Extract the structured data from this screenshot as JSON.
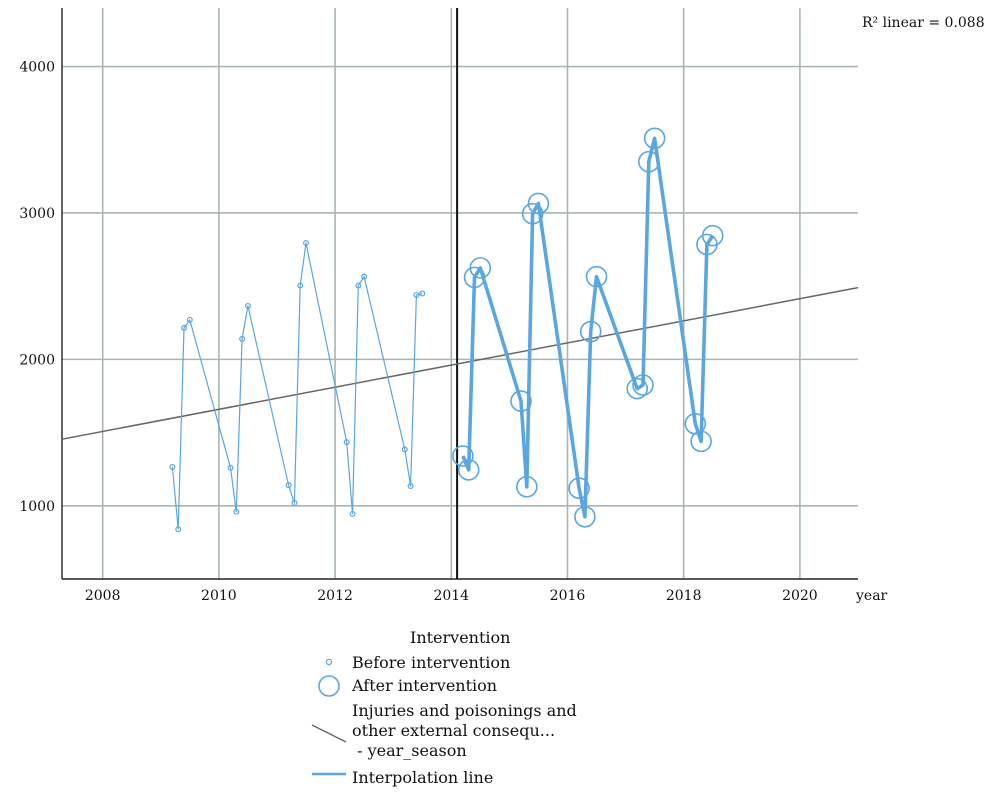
{
  "chart_data": {
    "type": "scatter",
    "xlabel": "year",
    "ylabel": "",
    "xlim": [
      2007.3,
      2021.0
    ],
    "ylim": [
      500,
      4400
    ],
    "x_ticks": [
      2008,
      2010,
      2012,
      2014,
      2016,
      2018,
      2020
    ],
    "y_ticks": [
      1000,
      2000,
      3000,
      4000
    ],
    "grid": true,
    "intervention_x": 2014.1,
    "fit_annotation": "R² linear = 0.088",
    "fit_line": {
      "x": [
        2007.3,
        2021.0
      ],
      "y": [
        1455,
        2490
      ]
    },
    "legend_title": "Intervention",
    "series": [
      {
        "name": "Before intervention",
        "marker": "small-circle",
        "color": "#5aa6e0",
        "x": [
          2009.2,
          2009.3,
          2009.4,
          2009.5,
          2010.2,
          2010.3,
          2010.4,
          2010.5,
          2011.2,
          2011.3,
          2011.4,
          2011.5,
          2012.2,
          2012.3,
          2012.4,
          2012.5,
          2013.2,
          2013.3,
          2013.4,
          2013.5
        ],
        "y": [
          1265,
          840,
          2215,
          2270,
          1260,
          960,
          2140,
          2365,
          1140,
          1020,
          2505,
          2795,
          1435,
          945,
          2505,
          2565,
          1385,
          1135,
          2440,
          2450
        ]
      },
      {
        "name": "After intervention",
        "marker": "large-circle",
        "color": "#5aa6e0",
        "x": [
          2014.2,
          2014.3,
          2014.4,
          2014.5,
          2015.2,
          2015.3,
          2015.4,
          2015.5,
          2016.2,
          2016.3,
          2016.4,
          2016.5,
          2017.2,
          2017.3,
          2017.4,
          2017.5,
          2018.2,
          2018.3,
          2018.4,
          2018.5
        ],
        "y": [
          1340,
          1245,
          2560,
          2625,
          1715,
          1130,
          2995,
          3065,
          1120,
          925,
          2190,
          2565,
          1800,
          1825,
          3350,
          3510,
          1560,
          1440,
          2785,
          2845
        ]
      }
    ],
    "legend_entries": [
      {
        "label": "Before intervention"
      },
      {
        "label": "After intervention"
      },
      {
        "label": "Injuries and poisonings and\nother external consequ...\n - year_season"
      },
      {
        "label": "Interpolation line"
      }
    ]
  },
  "colors": {
    "point": "#5aa6e0",
    "fit": "#666666",
    "grid": "#a9b5b5",
    "axis": "#222222"
  }
}
